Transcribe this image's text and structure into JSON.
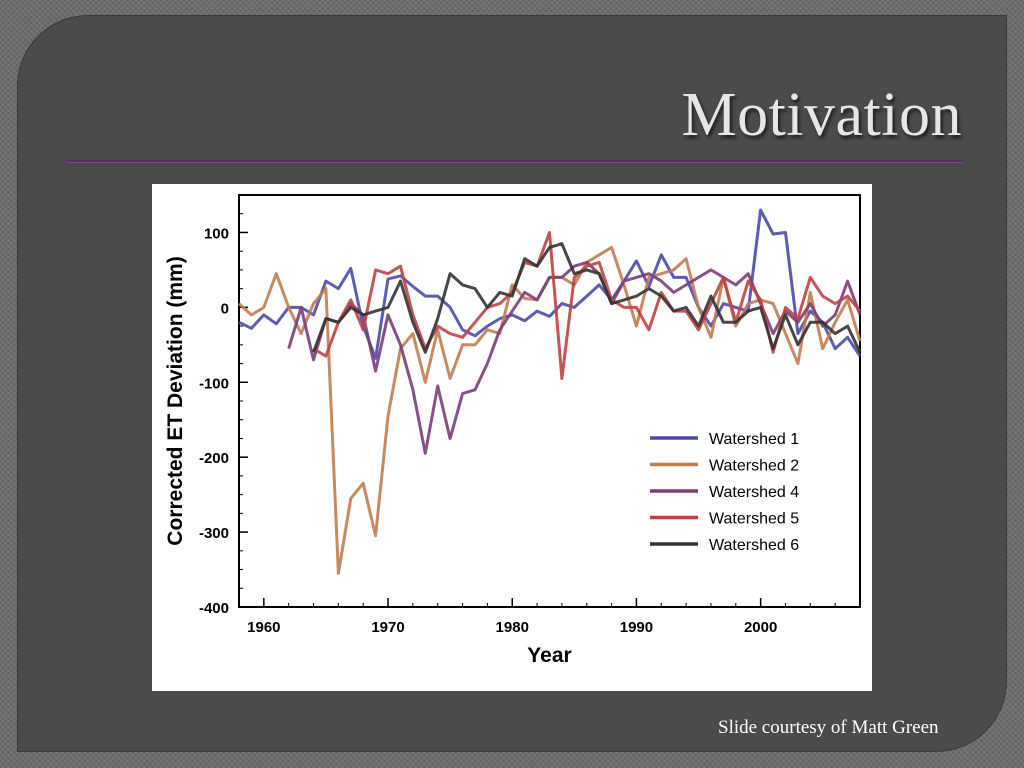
{
  "slide": {
    "title": "Motivation",
    "credit": "Slide courtesy of Matt Green"
  },
  "colors": {
    "Watershed 1": "#4a4aae",
    "Watershed 2": "#c27c50",
    "Watershed 4": "#7a3e7a",
    "Watershed 5": "#c24040",
    "Watershed 6": "#333333"
  },
  "chart_data": {
    "type": "line",
    "title": "",
    "xlabel": "Year",
    "ylabel": "Corrected ET Deviation (mm)",
    "xlim": [
      1958,
      2008
    ],
    "ylim": [
      -400,
      150
    ],
    "xticks": [
      1960,
      1970,
      1980,
      1990,
      2000
    ],
    "yticks": [
      100,
      0,
      -100,
      -200,
      -300,
      -400
    ],
    "legend_position": "middle-right",
    "grid": false,
    "series": [
      {
        "name": "Watershed 1",
        "x": [
          1958,
          1959,
          1960,
          1961,
          1962,
          1963,
          1964,
          1965,
          1966,
          1967,
          1968,
          1969,
          1970,
          1971,
          1972,
          1973,
          1974,
          1975,
          1976,
          1977,
          1978,
          1979,
          1980,
          1981,
          1982,
          1983,
          1984,
          1985,
          1986,
          1987,
          1988,
          1989,
          1990,
          1991,
          1992,
          1993,
          1994,
          1995,
          1996,
          1997,
          1998,
          1999,
          2000,
          2001,
          2002,
          2003,
          2004,
          2005,
          2006,
          2007,
          2008
        ],
        "values": [
          -20,
          -28,
          -10,
          -22,
          0,
          0,
          -10,
          35,
          25,
          52,
          -25,
          -68,
          38,
          42,
          28,
          15,
          15,
          0,
          -30,
          -38,
          -25,
          -15,
          -10,
          -18,
          -5,
          -12,
          5,
          0,
          15,
          30,
          10,
          35,
          62,
          28,
          70,
          40,
          40,
          0,
          -25,
          5,
          0,
          -5,
          130,
          98,
          100,
          -35,
          -5,
          -20,
          -55,
          -40,
          -65
        ]
      },
      {
        "name": "Watershed 2",
        "x": [
          1958,
          1959,
          1960,
          1961,
          1962,
          1963,
          1964,
          1965,
          1966,
          1967,
          1968,
          1969,
          1970,
          1971,
          1972,
          1973,
          1974,
          1975,
          1976,
          1977,
          1978,
          1979,
          1980,
          1981,
          1982,
          1983,
          1984,
          1985,
          1986,
          1987,
          1988,
          1989,
          1990,
          1991,
          1992,
          1993,
          1994,
          1995,
          1996,
          1997,
          1998,
          1999,
          2000,
          2001,
          2002,
          2003,
          2004,
          2005,
          2006,
          2007,
          2008
        ],
        "values": [
          5,
          -10,
          0,
          45,
          0,
          -35,
          5,
          25,
          -355,
          -255,
          -235,
          -305,
          -145,
          -55,
          -35,
          -100,
          -30,
          -95,
          -50,
          -50,
          -30,
          -35,
          30,
          12,
          10,
          40,
          40,
          30,
          60,
          70,
          80,
          30,
          -25,
          40,
          45,
          50,
          65,
          0,
          -40,
          40,
          -25,
          5,
          10,
          5,
          -35,
          -75,
          20,
          -55,
          -20,
          10,
          -45
        ]
      },
      {
        "name": "Watershed 4",
        "x": [
          1962,
          1963,
          1964,
          1965,
          1966,
          1967,
          1968,
          1969,
          1970,
          1971,
          1972,
          1973,
          1974,
          1975,
          1976,
          1977,
          1978,
          1979,
          1980,
          1981,
          1982,
          1983,
          1984,
          1985,
          1986,
          1987,
          1988,
          1989,
          1990,
          1991,
          1992,
          1993,
          1994,
          1995,
          1996,
          1997,
          1998,
          1999,
          2000,
          2001,
          2002,
          2003,
          2004,
          2005,
          2006,
          2007,
          2008
        ],
        "values": [
          -55,
          0,
          -70,
          -15,
          -20,
          5,
          -10,
          -85,
          -10,
          -50,
          -110,
          -195,
          -105,
          -175,
          -115,
          -110,
          -75,
          -30,
          -5,
          20,
          10,
          40,
          40,
          55,
          60,
          45,
          5,
          35,
          40,
          45,
          35,
          20,
          30,
          40,
          50,
          40,
          30,
          45,
          5,
          -35,
          -5,
          -20,
          5,
          -25,
          -10,
          35,
          -10
        ]
      },
      {
        "name": "Watershed 5",
        "x": [
          1964,
          1965,
          1966,
          1967,
          1968,
          1969,
          1970,
          1971,
          1972,
          1973,
          1974,
          1975,
          1976,
          1977,
          1978,
          1979,
          1980,
          1981,
          1982,
          1983,
          1984,
          1985,
          1986,
          1987,
          1988,
          1989,
          1990,
          1991,
          1992,
          1993,
          1994,
          1995,
          1996,
          1997,
          1998,
          1999,
          2000,
          2001,
          2002,
          2003,
          2004,
          2005,
          2006,
          2007,
          2008
        ],
        "values": [
          -55,
          -65,
          -20,
          10,
          -30,
          50,
          45,
          55,
          -10,
          -55,
          -25,
          -35,
          -40,
          -20,
          0,
          5,
          20,
          60,
          55,
          100,
          -95,
          40,
          55,
          60,
          10,
          0,
          0,
          -30,
          20,
          -5,
          -5,
          -30,
          5,
          40,
          -20,
          35,
          10,
          -60,
          0,
          -15,
          40,
          15,
          5,
          15,
          -5
        ]
      },
      {
        "name": "Watershed 6",
        "x": [
          1964,
          1965,
          1966,
          1967,
          1968,
          1969,
          1970,
          1971,
          1972,
          1973,
          1974,
          1975,
          1976,
          1977,
          1978,
          1979,
          1980,
          1981,
          1982,
          1983,
          1984,
          1985,
          1986,
          1987,
          1988,
          1989,
          1990,
          1991,
          1992,
          1993,
          1994,
          1995,
          1996,
          1997,
          1998,
          1999,
          2000,
          2001,
          2002,
          2003,
          2004,
          2005,
          2006,
          2007,
          2008
        ],
        "values": [
          -60,
          -15,
          -20,
          0,
          -10,
          -5,
          0,
          35,
          -20,
          -60,
          -15,
          45,
          30,
          25,
          0,
          20,
          15,
          65,
          55,
          80,
          85,
          45,
          50,
          45,
          5,
          10,
          15,
          25,
          15,
          -5,
          0,
          -25,
          15,
          -20,
          -20,
          -5,
          0,
          -55,
          -10,
          -50,
          -20,
          -20,
          -35,
          -25,
          -60
        ]
      }
    ]
  }
}
